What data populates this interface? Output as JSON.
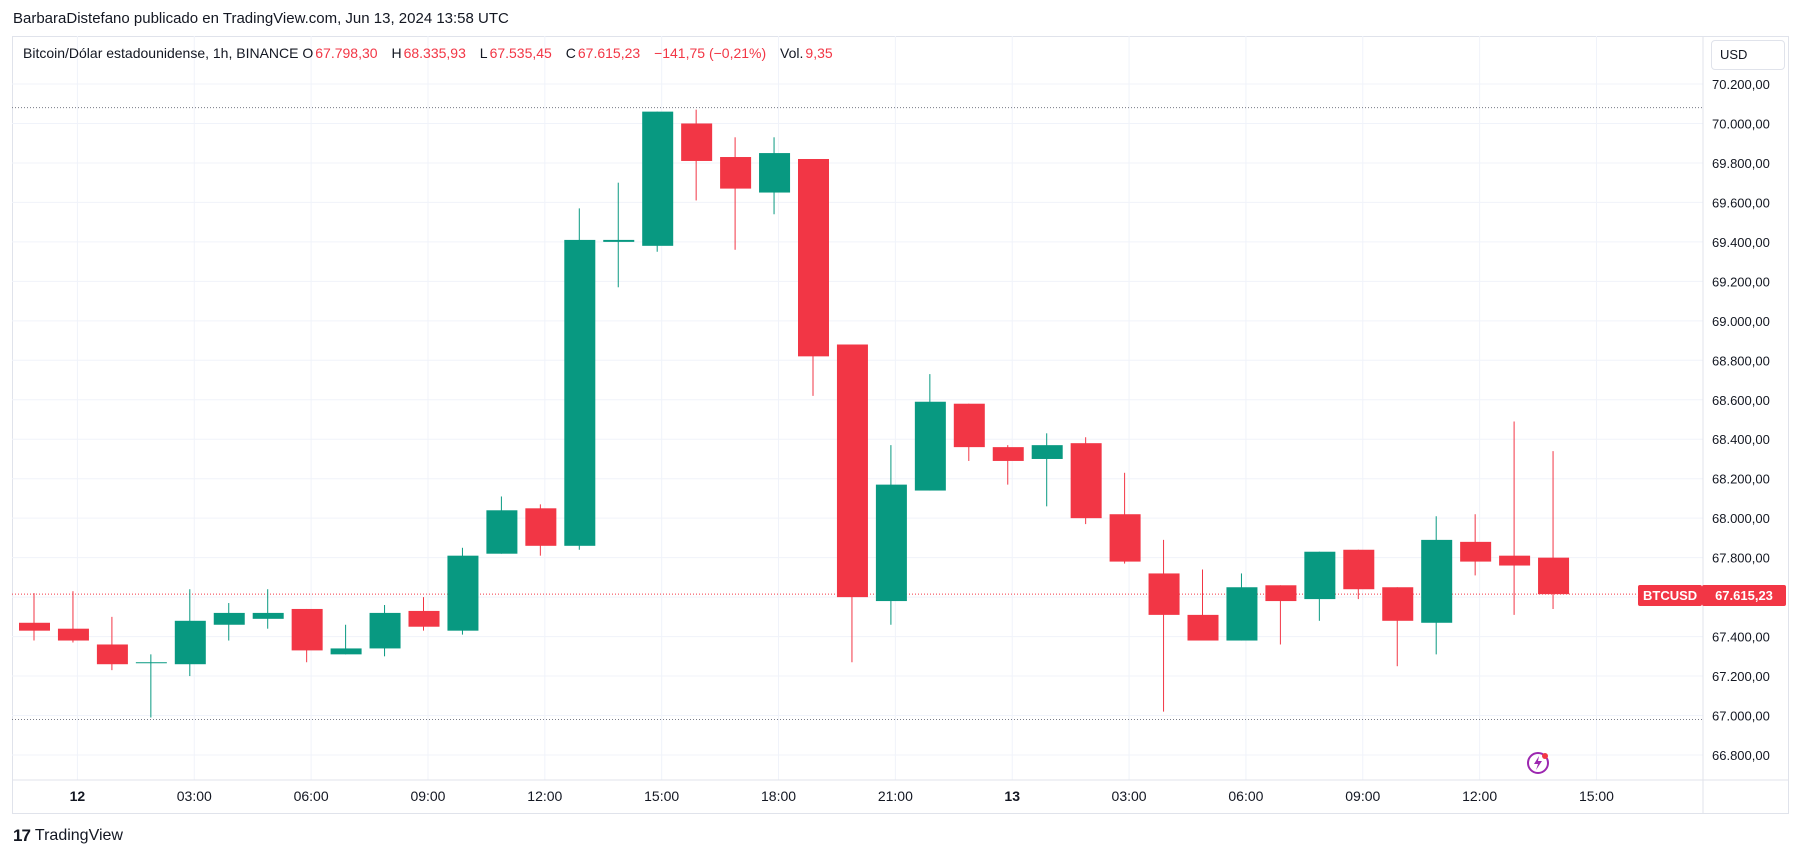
{
  "header": {
    "published_by": "BarbaraDistefano publicado en TradingView.com, Jun 13, 2024 13:58 UTC"
  },
  "legend": {
    "symbol": "Bitcoin/Dólar estadounidense, 1h, BINANCE",
    "open_label": "O",
    "open": "67.798,30",
    "high_label": "H",
    "high": "68.335,93",
    "low_label": "L",
    "low": "67.535,45",
    "close_label": "C",
    "close": "67.615,23",
    "change": "−141,75 (−0,21%)",
    "vol_label": "Vol.",
    "vol": "9,35"
  },
  "currency_button": "USD",
  "price_tag": {
    "symbol": "BTCUSD",
    "price": "67.615,23"
  },
  "footer": {
    "brand": "TradingView",
    "logo": "17"
  },
  "icons": {
    "flash": "flash-icon",
    "logo": "tradingview-logo-icon"
  },
  "colors": {
    "up": "#089981",
    "down": "#f23645",
    "grid": "#f0f3fa",
    "axis_text": "#131722",
    "dotted": "#787b86",
    "flash": "#9c27b0"
  },
  "chart_data": {
    "type": "candlestick",
    "title": "",
    "xlabel": "",
    "ylabel": "",
    "ylim": [
      66600,
      70300
    ],
    "y_ticks": [
      66800,
      67000,
      67200,
      67400,
      67600,
      67800,
      68000,
      68200,
      68400,
      68600,
      68800,
      69000,
      69200,
      69400,
      69600,
      69800,
      70000,
      70200
    ],
    "y_tick_labels": [
      "66.800,00",
      "67.000,00",
      "67.200,00",
      "67.400,00",
      "67.600,00",
      "67.800,00",
      "68.000,00",
      "68.200,00",
      "68.400,00",
      "68.600,00",
      "68.800,00",
      "69.000,00",
      "69.200,00",
      "69.400,00",
      "69.600,00",
      "69.800,00",
      "70.000,00",
      "70.200,00"
    ],
    "x_ticks": [
      {
        "label": "12",
        "bar": 2,
        "bold": true
      },
      {
        "label": "03:00",
        "bar": 5,
        "bold": false
      },
      {
        "label": "06:00",
        "bar": 8,
        "bold": false
      },
      {
        "label": "09:00",
        "bar": 11,
        "bold": false
      },
      {
        "label": "12:00",
        "bar": 14,
        "bold": false
      },
      {
        "label": "15:00",
        "bar": 17,
        "bold": false
      },
      {
        "label": "18:00",
        "bar": 20,
        "bold": false
      },
      {
        "label": "21:00",
        "bar": 23,
        "bold": false
      },
      {
        "label": "13",
        "bar": 26,
        "bold": true
      },
      {
        "label": "03:00",
        "bar": 29,
        "bold": false
      },
      {
        "label": "06:00",
        "bar": 32,
        "bold": false
      },
      {
        "label": "09:00",
        "bar": 35,
        "bold": false
      },
      {
        "label": "12:00",
        "bar": 38,
        "bold": false
      },
      {
        "label": "15:00",
        "bar": 41,
        "bold": false
      }
    ],
    "high_line": 70080,
    "low_line": 66980,
    "last_price": 67615.23,
    "candles": [
      {
        "o": 67470,
        "h": 67620,
        "l": 67380,
        "c": 67430
      },
      {
        "o": 67440,
        "h": 67630,
        "l": 67370,
        "c": 67380
      },
      {
        "o": 67360,
        "h": 67500,
        "l": 67230,
        "c": 67260
      },
      {
        "o": 67270,
        "h": 67310,
        "l": 66990,
        "c": 67270
      },
      {
        "o": 67260,
        "h": 67640,
        "l": 67200,
        "c": 67480
      },
      {
        "o": 67460,
        "h": 67570,
        "l": 67380,
        "c": 67520
      },
      {
        "o": 67490,
        "h": 67640,
        "l": 67440,
        "c": 67520
      },
      {
        "o": 67540,
        "h": 67540,
        "l": 67270,
        "c": 67330
      },
      {
        "o": 67310,
        "h": 67460,
        "l": 67310,
        "c": 67340
      },
      {
        "o": 67340,
        "h": 67560,
        "l": 67300,
        "c": 67520
      },
      {
        "o": 67530,
        "h": 67600,
        "l": 67430,
        "c": 67450
      },
      {
        "o": 67430,
        "h": 67850,
        "l": 67410,
        "c": 67810
      },
      {
        "o": 67820,
        "h": 68110,
        "l": 67820,
        "c": 68040
      },
      {
        "o": 68050,
        "h": 68070,
        "l": 67810,
        "c": 67860
      },
      {
        "o": 67860,
        "h": 69570,
        "l": 67840,
        "c": 69410
      },
      {
        "o": 69400,
        "h": 69700,
        "l": 69170,
        "c": 69410
      },
      {
        "o": 69380,
        "h": 70060,
        "l": 69350,
        "c": 70060
      },
      {
        "o": 70000,
        "h": 70070,
        "l": 69610,
        "c": 69810
      },
      {
        "o": 69830,
        "h": 69930,
        "l": 69360,
        "c": 69670
      },
      {
        "o": 69650,
        "h": 69930,
        "l": 69540,
        "c": 69850
      },
      {
        "o": 69820,
        "h": 69820,
        "l": 68620,
        "c": 68820
      },
      {
        "o": 68880,
        "h": 68880,
        "l": 67270,
        "c": 67600
      },
      {
        "o": 67580,
        "h": 68370,
        "l": 67460,
        "c": 68170
      },
      {
        "o": 68140,
        "h": 68730,
        "l": 68140,
        "c": 68590
      },
      {
        "o": 68580,
        "h": 68580,
        "l": 68290,
        "c": 68360
      },
      {
        "o": 68360,
        "h": 68370,
        "l": 68170,
        "c": 68290
      },
      {
        "o": 68300,
        "h": 68430,
        "l": 68060,
        "c": 68370
      },
      {
        "o": 68380,
        "h": 68410,
        "l": 67970,
        "c": 68000
      },
      {
        "o": 68020,
        "h": 68230,
        "l": 67770,
        "c": 67780
      },
      {
        "o": 67720,
        "h": 67890,
        "l": 67020,
        "c": 67510
      },
      {
        "o": 67510,
        "h": 67740,
        "l": 67380,
        "c": 67380
      },
      {
        "o": 67380,
        "h": 67720,
        "l": 67380,
        "c": 67650
      },
      {
        "o": 67660,
        "h": 67660,
        "l": 67360,
        "c": 67580
      },
      {
        "o": 67590,
        "h": 67830,
        "l": 67480,
        "c": 67830
      },
      {
        "o": 67840,
        "h": 67840,
        "l": 67590,
        "c": 67640
      },
      {
        "o": 67650,
        "h": 67650,
        "l": 67250,
        "c": 67480
      },
      {
        "o": 67470,
        "h": 68010,
        "l": 67310,
        "c": 67890
      },
      {
        "o": 67880,
        "h": 68020,
        "l": 67710,
        "c": 67780
      },
      {
        "o": 67810,
        "h": 68490,
        "l": 67510,
        "c": 67760
      },
      {
        "o": 67800,
        "h": 68340,
        "l": 67540,
        "c": 67615
      }
    ]
  }
}
